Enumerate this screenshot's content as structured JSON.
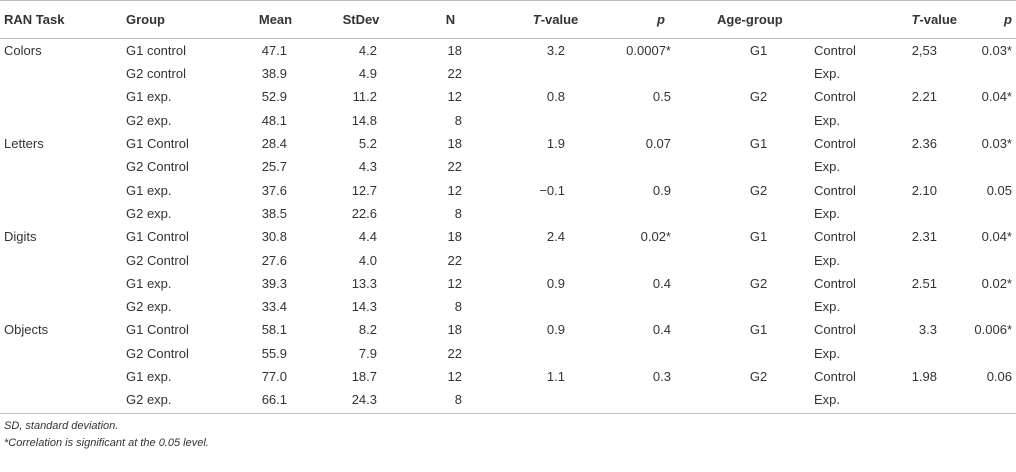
{
  "headers": {
    "ran_task": "RAN Task",
    "group": "Group",
    "mean": "Mean",
    "stdev": "StDev",
    "n": "N",
    "t_value": "T",
    "t_value_suffix": "-value",
    "p": "p",
    "age_group": "Age-group",
    "t_value2": "T",
    "t_value2_suffix": "-value",
    "p2": "p"
  },
  "rows": [
    {
      "task": "Colors",
      "group": "G1 control",
      "mean": "47.1",
      "stdev": "4.2",
      "n": "18",
      "t": "3.2",
      "p": "0.0007*",
      "age": "G1",
      "sub": "Control",
      "t2": "2,53",
      "p2": "0.03*"
    },
    {
      "task": "",
      "group": "G2 control",
      "mean": "38.9",
      "stdev": "4.9",
      "n": "22",
      "t": "",
      "p": "",
      "age": "",
      "sub": "Exp.",
      "t2": "",
      "p2": ""
    },
    {
      "task": "",
      "group": "G1 exp.",
      "mean": "52.9",
      "stdev": "11.2",
      "n": "12",
      "t": "0.8",
      "p": "0.5",
      "age": "G2",
      "sub": "Control",
      "t2": "2.21",
      "p2": "0.04*"
    },
    {
      "task": "",
      "group": "G2 exp.",
      "mean": "48.1",
      "stdev": "14.8",
      "n": "8",
      "t": "",
      "p": "",
      "age": "",
      "sub": "Exp.",
      "t2": "",
      "p2": ""
    },
    {
      "task": "Letters",
      "group": "G1 Control",
      "mean": "28.4",
      "stdev": "5.2",
      "n": "18",
      "t": "1.9",
      "p": "0.07",
      "age": "G1",
      "sub": "Control",
      "t2": "2.36",
      "p2": "0.03*"
    },
    {
      "task": "",
      "group": "G2 Control",
      "mean": "25.7",
      "stdev": "4.3",
      "n": "22",
      "t": "",
      "p": "",
      "age": "",
      "sub": "Exp.",
      "t2": "",
      "p2": ""
    },
    {
      "task": "",
      "group": "G1 exp.",
      "mean": "37.6",
      "stdev": "12.7",
      "n": "12",
      "t": "−0.1",
      "p": "0.9",
      "age": "G2",
      "sub": "Control",
      "t2": "2.10",
      "p2": "0.05"
    },
    {
      "task": "",
      "group": "G2 exp.",
      "mean": "38.5",
      "stdev": "22.6",
      "n": "8",
      "t": "",
      "p": "",
      "age": "",
      "sub": "Exp.",
      "t2": "",
      "p2": ""
    },
    {
      "task": "Digits",
      "group": "G1 Control",
      "mean": "30.8",
      "stdev": "4.4",
      "n": "18",
      "t": "2.4",
      "p": "0.02*",
      "age": "G1",
      "sub": "Control",
      "t2": "2.31",
      "p2": "0.04*"
    },
    {
      "task": "",
      "group": "G2 Control",
      "mean": "27.6",
      "stdev": "4.0",
      "n": "22",
      "t": "",
      "p": "",
      "age": "",
      "sub": "Exp.",
      "t2": "",
      "p2": ""
    },
    {
      "task": "",
      "group": "G1 exp.",
      "mean": "39.3",
      "stdev": "13.3",
      "n": "12",
      "t": "0.9",
      "p": "0.4",
      "age": "G2",
      "sub": "Control",
      "t2": "2.51",
      "p2": "0.02*"
    },
    {
      "task": "",
      "group": "G2 exp.",
      "mean": "33.4",
      "stdev": "14.3",
      "n": "8",
      "t": "",
      "p": "",
      "age": "",
      "sub": "Exp.",
      "t2": "",
      "p2": ""
    },
    {
      "task": "Objects",
      "group": "G1 Control",
      "mean": "58.1",
      "stdev": "8.2",
      "n": "18",
      "t": "0.9",
      "p": "0.4",
      "age": "G1",
      "sub": "Control",
      "t2": "3.3",
      "p2": "0.006*"
    },
    {
      "task": "",
      "group": "G2 Control",
      "mean": "55.9",
      "stdev": "7.9",
      "n": "22",
      "t": "",
      "p": "",
      "age": "",
      "sub": "Exp.",
      "t2": "",
      "p2": ""
    },
    {
      "task": "",
      "group": "G1 exp.",
      "mean": "77.0",
      "stdev": "18.7",
      "n": "12",
      "t": "1.1",
      "p": "0.3",
      "age": "G2",
      "sub": "Control",
      "t2": "1.98",
      "p2": "0.06"
    },
    {
      "task": "",
      "group": "G2 exp.",
      "mean": "66.1",
      "stdev": "24.3",
      "n": "8",
      "t": "",
      "p": "",
      "age": "",
      "sub": "Exp.",
      "t2": "",
      "p2": ""
    }
  ],
  "footnotes": {
    "sd_note": "SD, standard deviation.",
    "sig_note": "*Correlation is significant at the 0.05 level."
  },
  "colors": {
    "text": "#333333",
    "rule": "#bdbdbd"
  }
}
